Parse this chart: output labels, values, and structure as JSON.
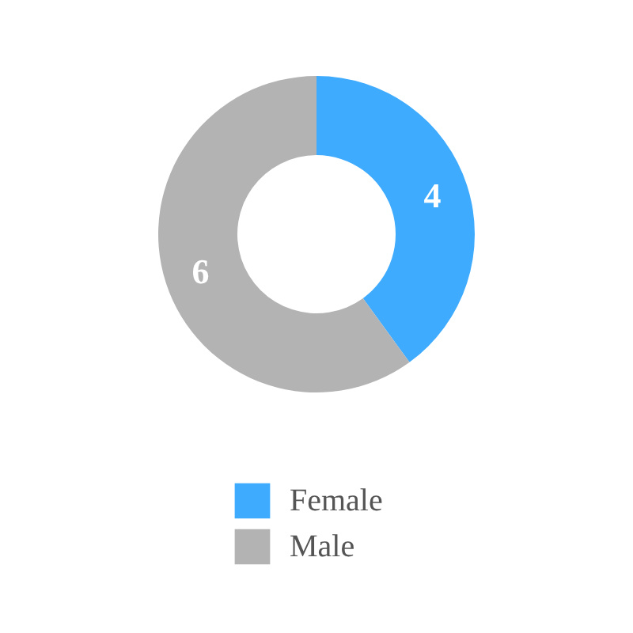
{
  "chart_data": {
    "type": "donut",
    "categories": [
      "Female",
      "Male"
    ],
    "values": [
      4,
      6
    ],
    "colors": [
      "#3fabff",
      "#b3b3b3"
    ],
    "data_labels": true,
    "legend": "bottom"
  }
}
